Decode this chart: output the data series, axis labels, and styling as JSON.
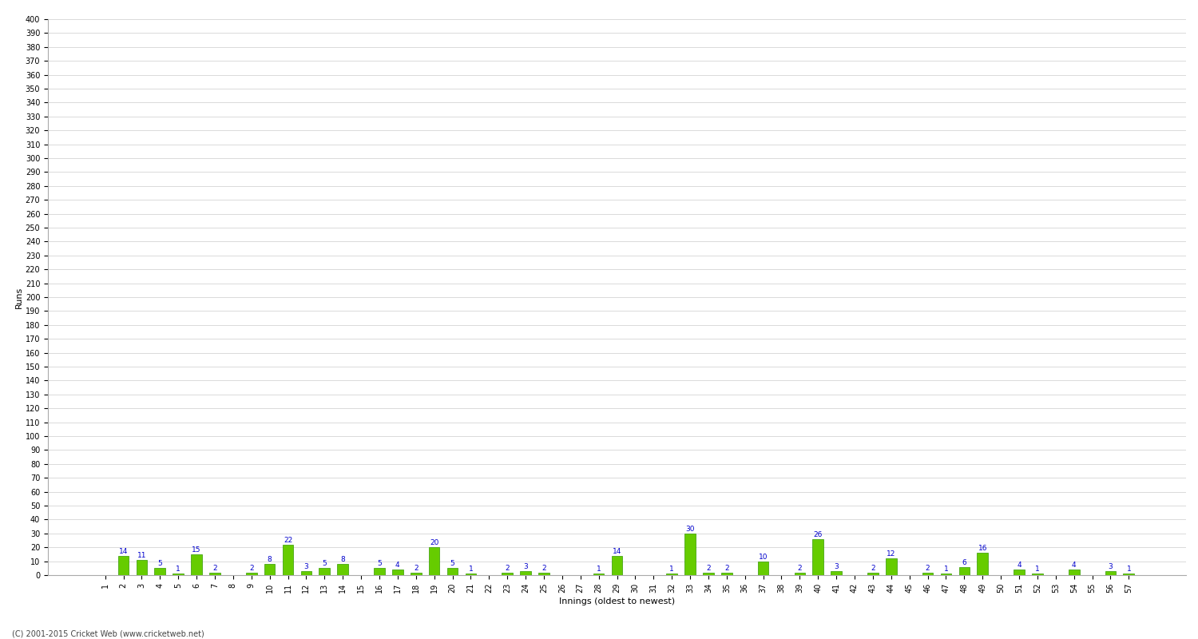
{
  "title": "",
  "xlabel": "Innings (oldest to newest)",
  "ylabel": "Runs",
  "values": [
    0,
    14,
    11,
    5,
    1,
    15,
    2,
    0,
    2,
    8,
    22,
    3,
    5,
    8,
    0,
    5,
    4,
    2,
    20,
    5,
    1,
    0,
    2,
    3,
    2,
    0,
    0,
    1,
    14,
    0,
    0,
    1,
    30,
    2,
    2,
    0,
    10,
    0,
    2,
    26,
    3,
    0,
    2,
    12,
    0,
    2,
    1,
    6,
    16,
    0,
    4,
    1,
    0,
    4,
    0,
    3,
    1
  ],
  "labels": [
    "1",
    "2",
    "3",
    "4",
    "5",
    "6",
    "7",
    "8",
    "9",
    "10",
    "11",
    "12",
    "13",
    "14",
    "15",
    "16",
    "17",
    "18",
    "19",
    "20",
    "21",
    "22",
    "23",
    "24",
    "25",
    "26",
    "27",
    "28",
    "29",
    "30",
    "31",
    "32",
    "33",
    "34",
    "35",
    "36",
    "37",
    "38",
    "39",
    "40",
    "41",
    "42",
    "43",
    "44",
    "45",
    "46",
    "47",
    "48",
    "49",
    "50",
    "51",
    "52",
    "53",
    "54",
    "55",
    "56",
    "57"
  ],
  "bar_color": "#66cc00",
  "bar_edge_color": "#339900",
  "label_color": "#0000cc",
  "background_color": "#ffffff",
  "grid_color": "#cccccc",
  "ylim": [
    0,
    400
  ],
  "yticks": [
    0,
    10,
    20,
    30,
    40,
    50,
    60,
    70,
    80,
    90,
    100,
    110,
    120,
    130,
    140,
    150,
    160,
    170,
    180,
    190,
    200,
    210,
    220,
    230,
    240,
    250,
    260,
    270,
    280,
    290,
    300,
    310,
    320,
    330,
    340,
    350,
    360,
    370,
    380,
    390,
    400
  ],
  "footer": "(C) 2001-2015 Cricket Web (www.cricketweb.net)",
  "label_fontsize": 6.5,
  "axis_fontsize": 7,
  "title_fontsize": 10
}
